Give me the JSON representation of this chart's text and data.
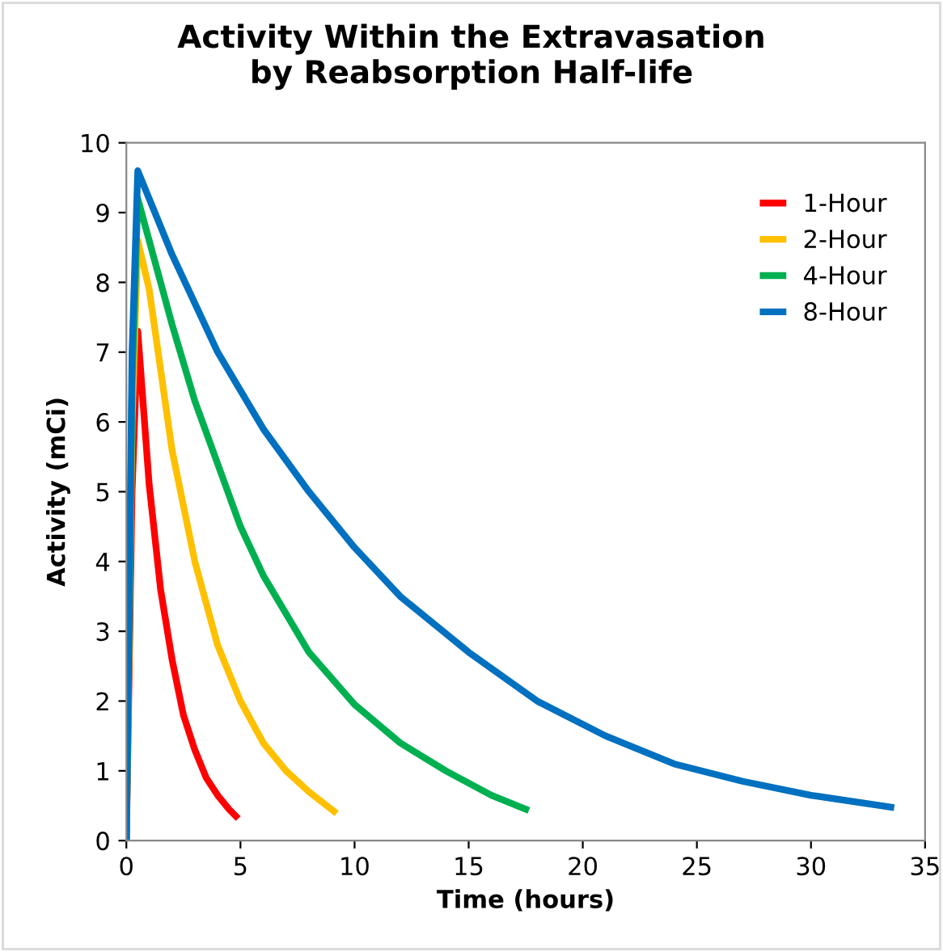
{
  "chart_data": {
    "type": "line",
    "title": "Activity Within the Extravasation\nby Reabsorption Half-life",
    "xlabel": "Time (hours)",
    "ylabel": "Activity (mCi)",
    "xlim": [
      0,
      35
    ],
    "xticks": [
      0,
      5,
      10,
      15,
      20,
      25,
      30,
      35
    ],
    "ylim": [
      0,
      10
    ],
    "yticks": [
      0,
      1,
      2,
      3,
      4,
      5,
      6,
      7,
      8,
      9,
      10
    ],
    "grid": false,
    "legend": "top right",
    "marker": "none",
    "line_style": "solid",
    "series": [
      {
        "name": "1-Hour",
        "color": "#ff0000",
        "x": [
          0,
          0.25,
          0.5,
          1,
          1.5,
          2,
          2.5,
          3,
          3.5,
          4,
          4.5,
          4.8
        ],
        "values": [
          0,
          5.0,
          7.3,
          5.1,
          3.6,
          2.6,
          1.8,
          1.3,
          0.9,
          0.65,
          0.45,
          0.35
        ]
      },
      {
        "name": "2-Hour",
        "color": "#ffc000",
        "x": [
          0,
          0.25,
          0.5,
          1,
          2,
          3,
          4,
          5,
          6,
          7,
          8,
          9.1
        ],
        "values": [
          0,
          6.0,
          8.6,
          7.9,
          5.6,
          4.0,
          2.8,
          2.0,
          1.4,
          1.0,
          0.7,
          0.42
        ]
      },
      {
        "name": "4-Hour",
        "color": "#00b050",
        "x": [
          0,
          0.25,
          0.5,
          1,
          2,
          3,
          4,
          5,
          6,
          8,
          10,
          12,
          14,
          16,
          17.5
        ],
        "values": [
          0,
          6.5,
          9.2,
          8.6,
          7.4,
          6.3,
          5.4,
          4.5,
          3.8,
          2.7,
          1.95,
          1.4,
          1.0,
          0.65,
          0.45
        ]
      },
      {
        "name": "8-Hour",
        "color": "#0070c0",
        "x": [
          0,
          0.25,
          0.5,
          2,
          4,
          6,
          8,
          10,
          12,
          15,
          18,
          21,
          24,
          27,
          30,
          33.5
        ],
        "values": [
          0,
          7.0,
          9.6,
          8.4,
          7.0,
          5.9,
          5.0,
          4.2,
          3.5,
          2.7,
          2.0,
          1.5,
          1.1,
          0.85,
          0.65,
          0.48
        ]
      }
    ]
  }
}
